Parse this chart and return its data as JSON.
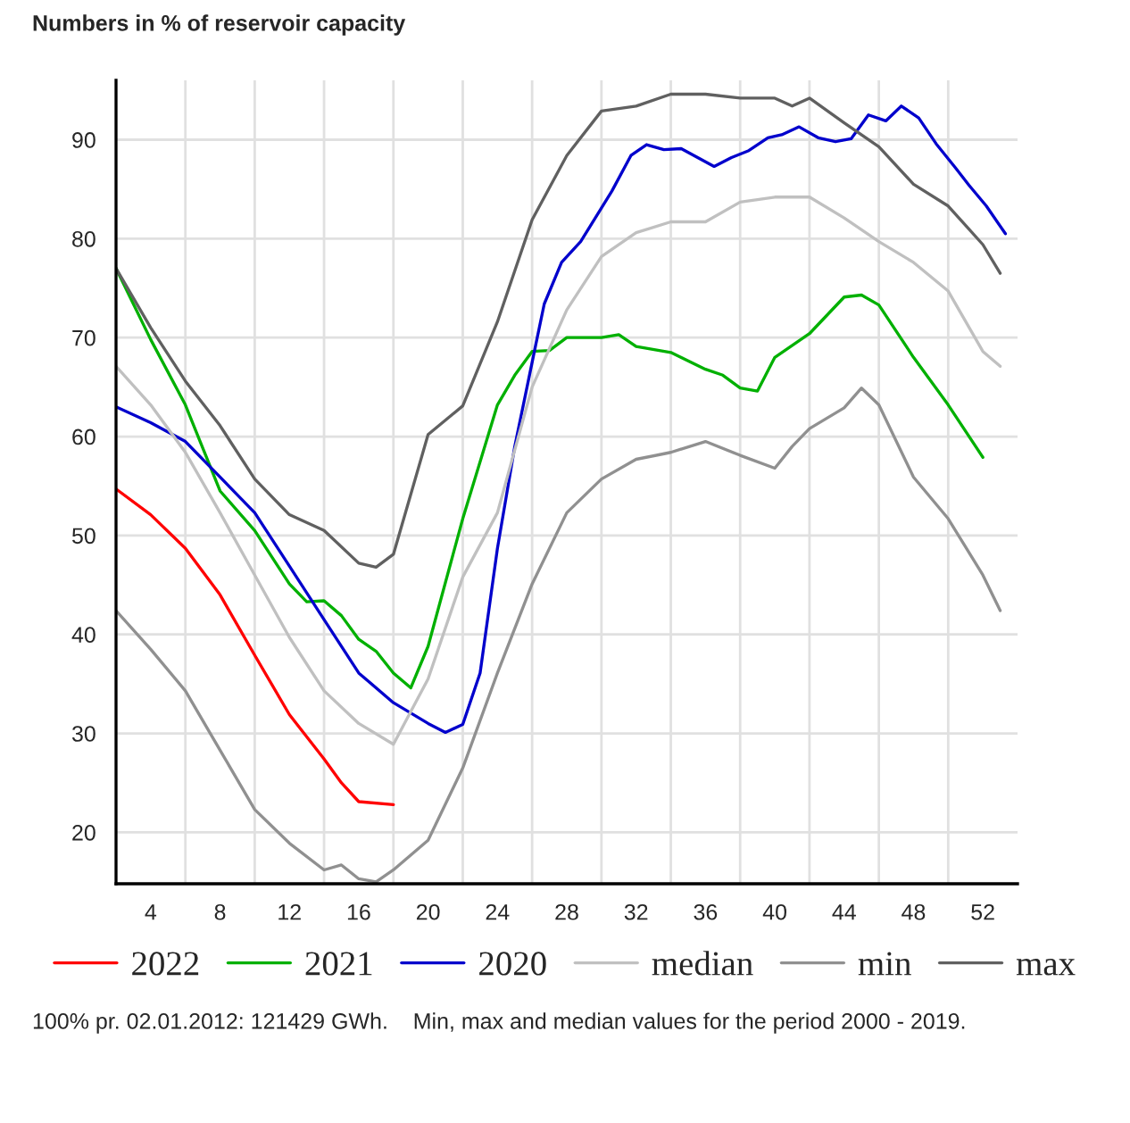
{
  "chart_data": {
    "type": "line",
    "title": "Numbers in % of reservoir capacity",
    "xlim": [
      2,
      54
    ],
    "ylim": [
      14.8,
      96
    ],
    "xticks": [
      4,
      {
        "value": 6,
        "label": null
      },
      8,
      {
        "value": 10,
        "label": null
      },
      12,
      {
        "value": 14,
        "label": null
      },
      16,
      {
        "value": 18,
        "label": null
      },
      20,
      {
        "value": 22,
        "label": null
      },
      24,
      {
        "value": 26,
        "label": null
      },
      28,
      {
        "value": 30,
        "label": null
      },
      32,
      {
        "value": 34,
        "label": null
      },
      36,
      {
        "value": 38,
        "label": null
      },
      40,
      {
        "value": 42,
        "label": null
      },
      44,
      {
        "value": 46,
        "label": null
      },
      48,
      {
        "value": 50,
        "label": null
      },
      52
    ],
    "yticks": [
      20,
      30,
      40,
      50,
      60,
      70,
      80,
      90
    ],
    "grid": true,
    "legend": "bottom",
    "marker": "none",
    "line_style": "solid",
    "series": [
      {
        "name": "2022",
        "color": "#ff0000",
        "x": [
          2,
          4,
          6,
          8,
          10,
          12,
          14,
          15,
          16,
          18
        ],
        "values": [
          54.7,
          52.1,
          48.7,
          44.0,
          37.9,
          31.9,
          27.4,
          25.0,
          23.1,
          22.8
        ]
      },
      {
        "name": "2021",
        "color": "#00b000",
        "x": [
          2,
          4,
          6,
          8,
          10,
          12,
          13,
          14,
          15,
          16,
          17,
          18,
          19,
          20,
          22,
          24,
          25,
          26,
          27,
          28,
          30,
          31,
          32,
          34,
          36,
          37,
          38,
          39,
          40,
          42,
          44,
          45,
          46,
          48,
          50,
          52
        ],
        "values": [
          77,
          69.8,
          63.2,
          54.5,
          50.5,
          45.1,
          43.3,
          43.4,
          41.9,
          39.5,
          38.3,
          36.1,
          34.6,
          38.8,
          51.7,
          63.2,
          66.2,
          68.6,
          68.7,
          70.0,
          70.0,
          70.3,
          69.1,
          68.5,
          66.8,
          66.2,
          64.9,
          64.6,
          68.0,
          70.4,
          74.1,
          74.3,
          73.3,
          68.0,
          63.2,
          57.9
        ]
      },
      {
        "name": "2020",
        "color": "#0000cc",
        "x": [
          2,
          4,
          6,
          8,
          10,
          12,
          14,
          16,
          18,
          20,
          21,
          22,
          23,
          24,
          25,
          26.2,
          26.7,
          27.7,
          28.8,
          30.6,
          31.7,
          32.6,
          33.6,
          34.6,
          36.5,
          37.5,
          38.5,
          39.6,
          40.4,
          41.4,
          42.5,
          43.5,
          44.4,
          45.4,
          46.4,
          47.3,
          48.3,
          49.3,
          50.4,
          51.2,
          52.2,
          53.3
        ],
        "values": [
          63.0,
          61.4,
          59.5,
          55.9,
          52.3,
          46.9,
          41.5,
          36.1,
          33.1,
          31.0,
          30.1,
          30.9,
          36.1,
          48.7,
          59.0,
          69.2,
          73.4,
          77.6,
          79.7,
          84.8,
          88.4,
          89.5,
          89.0,
          89.1,
          87.3,
          88.2,
          88.9,
          90.2,
          90.5,
          91.3,
          90.2,
          89.8,
          90.1,
          92.5,
          91.9,
          93.4,
          92.2,
          89.6,
          87.2,
          85.4,
          83.3,
          80.5
        ]
      },
      {
        "name": "median",
        "color": "#c0c0c0",
        "x": [
          2,
          4,
          6,
          8,
          10,
          12,
          14,
          16,
          18,
          20,
          22,
          24,
          26,
          28,
          30,
          32,
          34,
          36,
          38,
          40,
          42,
          44,
          46,
          48,
          50,
          52,
          53
        ],
        "values": [
          67.1,
          63.2,
          58.4,
          52.3,
          46.0,
          39.7,
          34.3,
          31.0,
          28.9,
          35.5,
          45.8,
          52.3,
          65.0,
          72.8,
          78.2,
          80.6,
          81.7,
          81.7,
          83.7,
          84.2,
          84.2,
          82.1,
          79.7,
          77.6,
          74.7,
          68.6,
          67.1
        ]
      },
      {
        "name": "min",
        "color": "#909090",
        "x": [
          2,
          4,
          6,
          8,
          10,
          12,
          14,
          15,
          16,
          17,
          18,
          20,
          22,
          24,
          26,
          28,
          30,
          32,
          34,
          36,
          38,
          40,
          41,
          42,
          44,
          45,
          46,
          48,
          50,
          52,
          53
        ],
        "values": [
          42.4,
          38.5,
          34.3,
          28.3,
          22.3,
          18.9,
          16.2,
          16.7,
          15.3,
          15.0,
          16.2,
          19.2,
          26.5,
          36.1,
          45.1,
          52.3,
          55.7,
          57.7,
          58.4,
          59.5,
          58.1,
          56.8,
          59.0,
          60.8,
          62.9,
          64.9,
          63.2,
          55.9,
          51.7,
          46.0,
          42.4
        ]
      },
      {
        "name": "max",
        "color": "#606060",
        "x": [
          2,
          4,
          6,
          8,
          10,
          12,
          14,
          16,
          17,
          18,
          20,
          22,
          24,
          26,
          28,
          30,
          32,
          34,
          36,
          38,
          40,
          41,
          42,
          44,
          46,
          48,
          50,
          52,
          53
        ],
        "values": [
          77,
          71.0,
          65.6,
          61.1,
          55.7,
          52.1,
          50.5,
          47.2,
          46.8,
          48.1,
          60.2,
          63.1,
          71.6,
          81.9,
          88.4,
          92.9,
          93.4,
          94.6,
          94.6,
          94.2,
          94.2,
          93.4,
          94.2,
          91.7,
          89.3,
          85.5,
          83.3,
          79.4,
          76.5
        ]
      }
    ],
    "annotations": [
      "100% pr. 02.01.2012: 121429 GWh.    Min, max and median values for the period 2000 - 2019."
    ]
  }
}
